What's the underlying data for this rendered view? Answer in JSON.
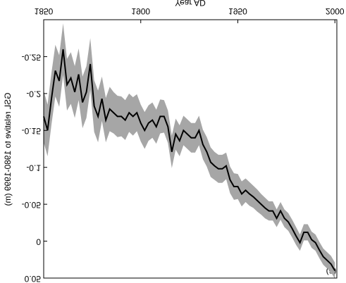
{
  "chart_data": {
    "type": "line",
    "xlabel": "Year AD",
    "ylabel": "GSL relative to 1980-1999 (m)",
    "annotation": "(a)",
    "x": [
      1850,
      1852,
      1854,
      1856,
      1858,
      1860,
      1862,
      1864,
      1866,
      1868,
      1870,
      1872,
      1874,
      1876,
      1878,
      1880,
      1882,
      1884,
      1886,
      1888,
      1890,
      1892,
      1894,
      1896,
      1898,
      1900,
      1902,
      1904,
      1906,
      1908,
      1910,
      1912,
      1914,
      1916,
      1918,
      1920,
      1922,
      1924,
      1926,
      1928,
      1930,
      1932,
      1934,
      1936,
      1938,
      1940,
      1942,
      1944,
      1946,
      1948,
      1950,
      1952,
      1954,
      1956,
      1958,
      1960,
      1962,
      1964,
      1966,
      1968,
      1970,
      1972,
      1974,
      1976,
      1978,
      1980,
      1982,
      1984,
      1986,
      1988,
      1990,
      1992,
      1994,
      1996,
      1998,
      2000
    ],
    "values": [
      -0.169,
      -0.15,
      -0.193,
      -0.231,
      -0.217,
      -0.26,
      -0.212,
      -0.221,
      -0.202,
      -0.226,
      -0.188,
      -0.202,
      -0.24,
      -0.183,
      -0.169,
      -0.193,
      -0.164,
      -0.179,
      -0.174,
      -0.169,
      -0.169,
      -0.164,
      -0.174,
      -0.169,
      -0.174,
      -0.16,
      -0.15,
      -0.16,
      -0.164,
      -0.155,
      -0.169,
      -0.169,
      -0.155,
      -0.121,
      -0.145,
      -0.136,
      -0.15,
      -0.145,
      -0.14,
      -0.14,
      -0.15,
      -0.131,
      -0.121,
      -0.107,
      -0.102,
      -0.098,
      -0.098,
      -0.102,
      -0.083,
      -0.074,
      -0.074,
      -0.064,
      -0.069,
      -0.064,
      -0.06,
      -0.055,
      -0.05,
      -0.045,
      -0.041,
      -0.041,
      -0.031,
      -0.041,
      -0.031,
      -0.026,
      -0.017,
      -0.007,
      0.002,
      -0.012,
      -0.012,
      -0.002,
      0.002,
      0.012,
      0.021,
      0.026,
      0.031,
      0.04
    ],
    "errors": [
      0.035,
      0.035,
      0.035,
      0.035,
      0.035,
      0.035,
      0.035,
      0.035,
      0.035,
      0.035,
      0.035,
      0.035,
      0.035,
      0.035,
      0.035,
      0.03,
      0.03,
      0.03,
      0.028,
      0.028,
      0.027,
      0.027,
      0.026,
      0.026,
      0.025,
      0.025,
      0.025,
      0.024,
      0.024,
      0.023,
      0.023,
      0.022,
      0.022,
      0.022,
      0.021,
      0.021,
      0.02,
      0.02,
      0.02,
      0.02,
      0.02,
      0.02,
      0.02,
      0.02,
      0.019,
      0.019,
      0.019,
      0.018,
      0.018,
      0.018,
      0.017,
      0.017,
      0.016,
      0.016,
      0.015,
      0.015,
      0.014,
      0.014,
      0.013,
      0.013,
      0.012,
      0.012,
      0.012,
      0.012,
      0.012,
      0.012,
      0.011,
      0.011,
      0.011,
      0.011,
      0.011,
      0.011,
      0.011,
      0.011,
      0.011,
      0.011
    ],
    "line_color": "#000000",
    "band_color": "#a6a6a6",
    "xlim": [
      1850,
      2001
    ],
    "xticks": [
      1850,
      1900,
      1950,
      2000
    ],
    "ylim": [
      -0.3,
      0.05
    ],
    "yticks": [
      -0.25,
      -0.2,
      -0.15,
      -0.1,
      -0.05,
      0,
      0.05
    ],
    "flipped_vertically": true
  }
}
